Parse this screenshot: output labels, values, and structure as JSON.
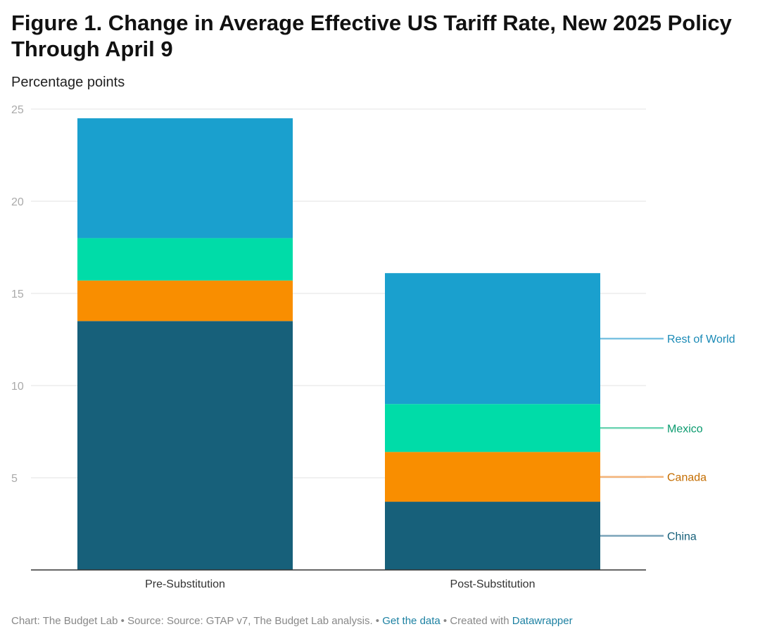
{
  "header": {
    "title": "Figure 1. Change in Average Effective US Tariff Rate, New 2025 Policy Through April 9",
    "subtitle": "Percentage points"
  },
  "footer": {
    "prefix": "Chart: The Budget Lab • Source: Source: GTAP v7, The Budget Lab analysis. • ",
    "get_data": "Get the data",
    "middle": " • Created with ",
    "datawrapper": "Datawrapper"
  },
  "chart_data": {
    "type": "bar",
    "stacked": true,
    "categories": [
      "Pre-Substitution",
      "Post-Substitution"
    ],
    "series": [
      {
        "name": "China",
        "color": "#17607a",
        "values": [
          13.5,
          3.7
        ]
      },
      {
        "name": "Canada",
        "color": "#f98e00",
        "values": [
          2.2,
          2.7
        ]
      },
      {
        "name": "Mexico",
        "color": "#00dca8",
        "values": [
          2.3,
          2.6
        ]
      },
      {
        "name": "Rest of World",
        "color": "#1aa0ce",
        "values": [
          6.5,
          7.1
        ]
      }
    ],
    "label_colors": {
      "China": "#17607a",
      "Canada": "#c46d00",
      "Mexico": "#0a9a6e",
      "Rest of World": "#1a8ab6"
    },
    "line_colors": {
      "China": "#7aa4b8",
      "Canada": "#f3b47a",
      "Mexico": "#6fd4b4",
      "Rest of World": "#7cc3e2"
    },
    "ylim": [
      0,
      25
    ],
    "yticks": [
      5,
      10,
      15,
      20,
      25
    ],
    "grid": true,
    "legend": "direct labels right"
  }
}
